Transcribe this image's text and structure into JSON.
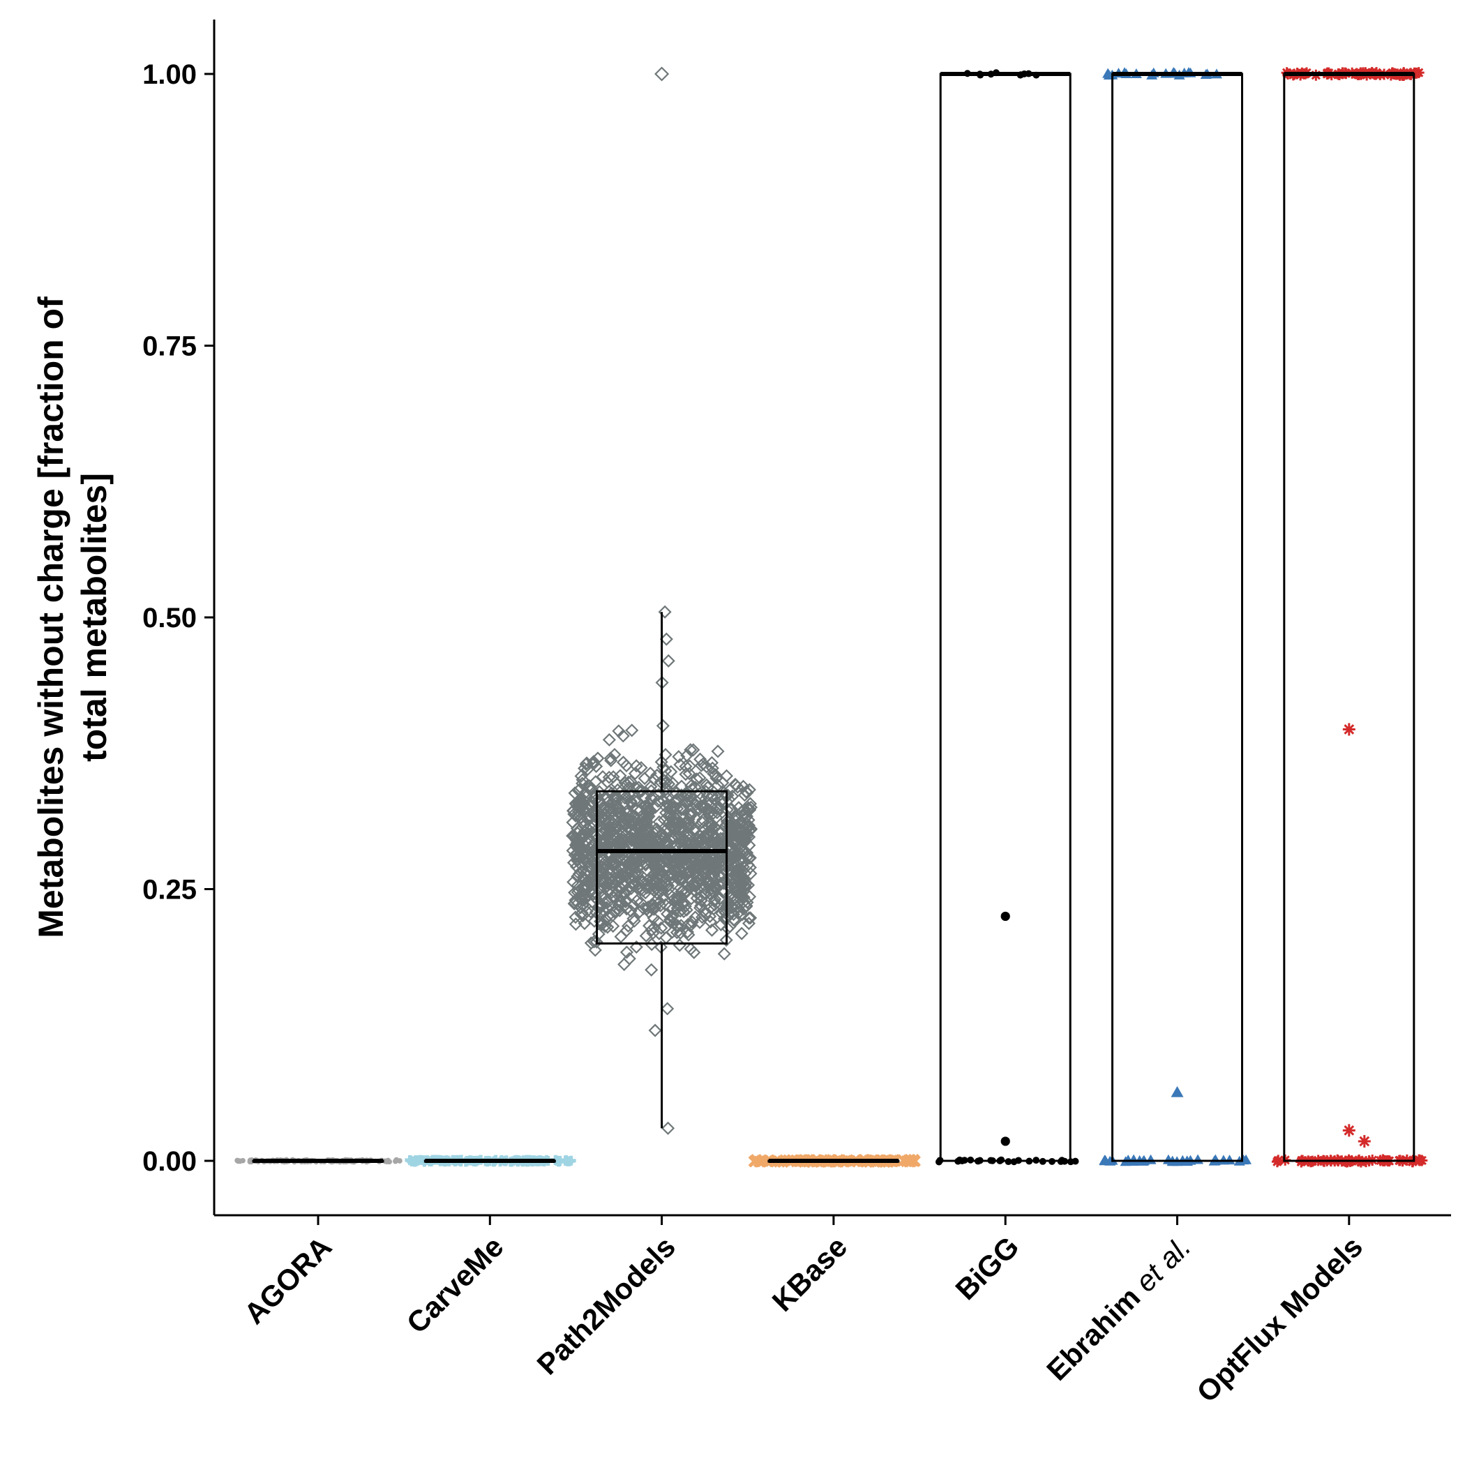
{
  "chart_data": {
    "type": "box",
    "ylabel_line1": "Metabolites without charge [fraction of",
    "ylabel_line2": "total metabolites]",
    "xlabel": "",
    "ylim": [
      -0.05,
      1.05
    ],
    "yticks": [
      "0.00",
      "0.25",
      "0.50",
      "0.75",
      "1.00"
    ],
    "grid": false,
    "legend": "none",
    "categories": [
      {
        "name": "AGORA",
        "color": "#a6a6a6",
        "marker": "circle",
        "box": {
          "q1": 0.0,
          "median": 0.0,
          "q3": 0.0,
          "whisker_low": 0.0,
          "whisker_high": 0.0
        },
        "outliers": []
      },
      {
        "name": "CarveMe",
        "color": "#9fd4e3",
        "marker": "cross",
        "box": {
          "q1": 0.0,
          "median": 0.0,
          "q3": 0.0,
          "whisker_low": 0.0,
          "whisker_high": 0.0
        },
        "outliers": []
      },
      {
        "name": "Path2Models",
        "color": "#6f7778",
        "marker": "diamond-open",
        "box": {
          "q1": 0.2,
          "median": 0.285,
          "q3": 0.34,
          "whisker_low": 0.03,
          "whisker_high": 0.505
        },
        "outliers": [
          1.0
        ]
      },
      {
        "name": "KBase",
        "color": "#f0a868",
        "marker": "x",
        "box": {
          "q1": 0.0,
          "median": 0.0,
          "q3": 0.0,
          "whisker_low": 0.0,
          "whisker_high": 0.0
        },
        "outliers": []
      },
      {
        "name": "BiGG",
        "color": "#000000",
        "marker": "dot",
        "box": {
          "q1": 0.0,
          "median": 1.0,
          "q3": 1.0,
          "whisker_low": 0.0,
          "whisker_high": 1.0
        },
        "outliers": [
          0.225,
          0.018
        ]
      },
      {
        "name": "Ebrahim",
        "name_suffix": "et al.",
        "color": "#3a78b8",
        "marker": "triangle",
        "box": {
          "q1": 0.0,
          "median": 1.0,
          "q3": 1.0,
          "whisker_low": 0.0,
          "whisker_high": 1.0
        },
        "outliers": [
          0.063
        ]
      },
      {
        "name": "OptFlux Models",
        "color": "#d42a2a",
        "marker": "asterisk",
        "box": {
          "q1": 0.0,
          "median": 1.0,
          "q3": 1.0,
          "whisker_low": 0.0,
          "whisker_high": 1.0
        },
        "outliers": [
          0.397,
          0.028,
          0.018
        ]
      }
    ]
  }
}
